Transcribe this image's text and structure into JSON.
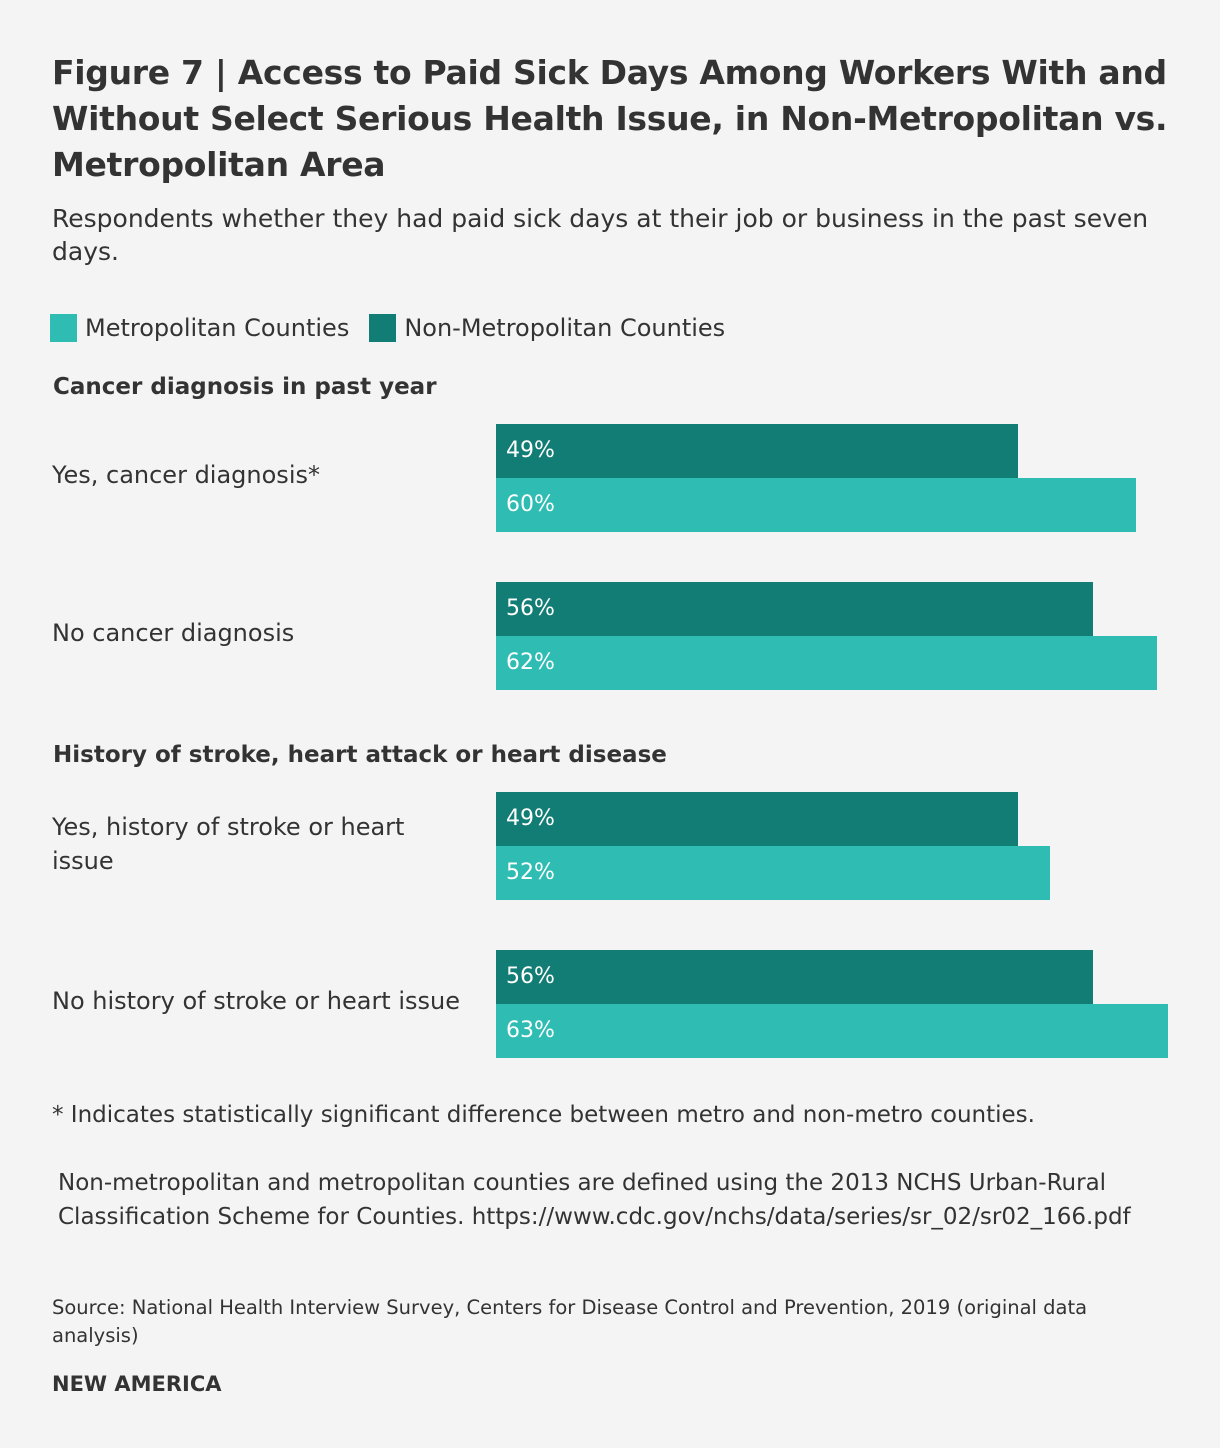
{
  "title": "Figure 7 | Access to Paid Sick Days Among Workers With and Without Select Serious Health Issue, in Non-Metropolitan vs. Metropolitan Area",
  "subtitle": "Respondents whether they had paid sick days at their job or business in the past seven days.",
  "footnote_significance": "* Indicates statistically significant difference between metro and non-metro counties.",
  "footnote_definition": "Non-metropolitan and metropolitan counties are defined using the 2013 NCHS Urban-Rural Classification Scheme for Counties. https://www.cdc.gov/nchs/data/series/sr_02/sr02_166.pdf",
  "source": "Source: National Health Interview Survey, Centers for Disease Control and Prevention, 2019 (original data analysis)",
  "brand": "NEW AMERICA",
  "chart_data": {
    "type": "bar",
    "orientation": "horizontal",
    "unit": "%",
    "xlim": [
      0,
      63
    ],
    "grid": false,
    "legend_position": "top-left",
    "series": [
      {
        "name": "Non-Metropolitan Counties",
        "color": "#117d74"
      },
      {
        "name": "Metropolitan Counties",
        "color": "#2ebcb3"
      }
    ],
    "legend_order": [
      "Metropolitan Counties",
      "Non-Metropolitan Counties"
    ],
    "groups": [
      {
        "title": "Cancer diagnosis in past year",
        "rows": [
          {
            "label": "Yes, cancer diagnosis*",
            "non_metro": 49,
            "metro": 60
          },
          {
            "label": "No cancer diagnosis",
            "non_metro": 56,
            "metro": 62
          }
        ]
      },
      {
        "title": "History of stroke, heart attack or heart disease",
        "rows": [
          {
            "label": "Yes, history of stroke or heart issue",
            "non_metro": 49,
            "metro": 52
          },
          {
            "label": "No history of stroke or heart issue",
            "non_metro": 56,
            "metro": 63
          }
        ]
      }
    ]
  }
}
